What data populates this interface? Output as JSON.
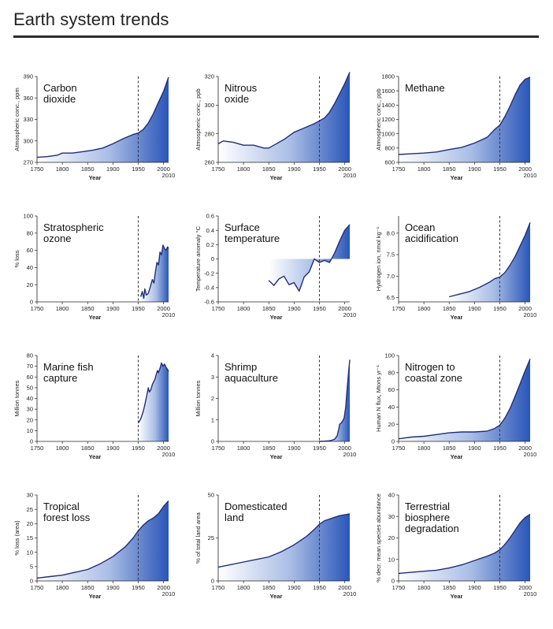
{
  "page": {
    "title": "Earth system trends"
  },
  "colors": {
    "line": "#1f2d7a",
    "fill_dark": "#2a56b8",
    "fill_light": "#ffffff",
    "marker": "#333333"
  },
  "chart_data": [
    {
      "type": "area",
      "title_lines": [
        "Carbon",
        "dioxide"
      ],
      "ylabel": "Atmospheric conc., ppm",
      "xlabel": "Year",
      "year_label": "2010",
      "xlim": [
        1750,
        2010
      ],
      "ylim": [
        270,
        390
      ],
      "xticks": [
        1750,
        1800,
        1850,
        1900,
        1950,
        2000
      ],
      "yticks": [
        270,
        300,
        330,
        360,
        390
      ],
      "marker_x": 1950,
      "x": [
        1750,
        1770,
        1790,
        1800,
        1820,
        1840,
        1860,
        1880,
        1900,
        1920,
        1940,
        1950,
        1960,
        1970,
        1980,
        1990,
        2000,
        2010
      ],
      "y": [
        277,
        278,
        280,
        283,
        283,
        285,
        287,
        290,
        296,
        303,
        309,
        311,
        316,
        325,
        338,
        354,
        369,
        389
      ]
    },
    {
      "type": "area",
      "title_lines": [
        "Nitrous",
        "oxide"
      ],
      "ylabel": "Atmospheric conc., ppb",
      "xlabel": "Year",
      "year_label": "2010",
      "xlim": [
        1750,
        2010
      ],
      "ylim": [
        260,
        320
      ],
      "xticks": [
        1750,
        1800,
        1850,
        1900,
        1950,
        2000
      ],
      "yticks": [
        260,
        280,
        300,
        320
      ],
      "marker_x": 1950,
      "x": [
        1750,
        1760,
        1780,
        1800,
        1820,
        1840,
        1850,
        1860,
        1880,
        1900,
        1920,
        1940,
        1950,
        1960,
        1970,
        1980,
        1990,
        2000,
        2010
      ],
      "y": [
        273,
        275,
        274,
        272,
        272,
        270,
        270,
        272,
        276,
        281,
        284,
        287,
        289,
        291,
        295,
        301,
        308,
        315,
        323
      ]
    },
    {
      "type": "area",
      "title_lines": [
        "Methane"
      ],
      "ylabel": "Atmospheric conc., ppb",
      "xlabel": "Year",
      "year_label": "2010",
      "xlim": [
        1750,
        2010
      ],
      "ylim": [
        600,
        1800
      ],
      "xticks": [
        1750,
        1800,
        1850,
        1900,
        1950,
        2000
      ],
      "yticks": [
        600,
        800,
        1000,
        1200,
        1400,
        1600,
        1800
      ],
      "marker_x": 1950,
      "x": [
        1750,
        1775,
        1800,
        1825,
        1850,
        1875,
        1900,
        1925,
        1940,
        1950,
        1960,
        1970,
        1980,
        1990,
        2000,
        2010
      ],
      "y": [
        710,
        720,
        730,
        745,
        780,
        810,
        870,
        950,
        1060,
        1120,
        1240,
        1380,
        1540,
        1680,
        1760,
        1790
      ]
    },
    {
      "type": "area",
      "title_lines": [
        "Stratospheric",
        "ozone"
      ],
      "ylabel": "% loss",
      "xlabel": "Year",
      "year_label": "2010",
      "xlim": [
        1750,
        2010
      ],
      "ylim": [
        0,
        100
      ],
      "xticks": [
        1750,
        1800,
        1850,
        1900,
        1950,
        2000
      ],
      "yticks": [
        0,
        20,
        40,
        60,
        80,
        100
      ],
      "marker_x": 1950,
      "x": [
        1955,
        1958,
        1961,
        1963,
        1966,
        1970,
        1974,
        1978,
        1981,
        1984,
        1987,
        1990,
        1993,
        1996,
        1999,
        2002,
        2005,
        2008,
        2010
      ],
      "y": [
        6,
        12,
        4,
        15,
        8,
        10,
        18,
        26,
        22,
        35,
        46,
        43,
        58,
        55,
        66,
        62,
        60,
        64,
        62
      ]
    },
    {
      "type": "area",
      "title_lines": [
        "Surface",
        "temperature"
      ],
      "ylabel": "Temperature anomaly °C",
      "xlabel": "Year",
      "year_label": "2010",
      "xlim": [
        1750,
        2010
      ],
      "ylim": [
        -0.6,
        0.6
      ],
      "xticks": [
        1750,
        1800,
        1850,
        1900,
        1950,
        2000
      ],
      "yticks": [
        -0.6,
        -0.4,
        -0.2,
        0,
        0.2,
        0.4,
        0.6
      ],
      "yticklabels": [
        "-0.6",
        "-0.4",
        "-0.2",
        "0",
        "0.2",
        "0.4",
        "0.6"
      ],
      "marker_x": 1950,
      "baseline": 0,
      "x": [
        1850,
        1860,
        1870,
        1880,
        1890,
        1900,
        1910,
        1920,
        1930,
        1940,
        1950,
        1960,
        1970,
        1980,
        1990,
        2000,
        2010
      ],
      "y": [
        -0.3,
        -0.37,
        -0.28,
        -0.24,
        -0.36,
        -0.33,
        -0.45,
        -0.25,
        -0.18,
        0.0,
        -0.05,
        -0.02,
        -0.05,
        0.08,
        0.25,
        0.4,
        0.48
      ]
    },
    {
      "type": "area",
      "title_lines": [
        "Ocean",
        "acidification"
      ],
      "ylabel": "Hydrogen ion, nmol kg⁻¹",
      "xlabel": "Year",
      "year_label": "2010",
      "xlim": [
        1750,
        2010
      ],
      "ylim": [
        6.4,
        8.4
      ],
      "xticks": [
        1750,
        1800,
        1850,
        1900,
        1950,
        2000
      ],
      "yticks": [
        6.5,
        7.0,
        7.5,
        8.0
      ],
      "yticklabels": [
        "6.5",
        "7.0",
        "7.5",
        "8.0"
      ],
      "marker_x": 1950,
      "x": [
        1850,
        1870,
        1890,
        1910,
        1930,
        1940,
        1950,
        1960,
        1970,
        1980,
        1990,
        2000,
        2010
      ],
      "y": [
        6.52,
        6.58,
        6.64,
        6.74,
        6.86,
        6.94,
        6.98,
        7.08,
        7.25,
        7.45,
        7.7,
        7.95,
        8.25
      ]
    },
    {
      "type": "area",
      "title_lines": [
        "Marine fish",
        "capture"
      ],
      "ylabel": "Million tonnes",
      "xlabel": "Year",
      "year_label": "2010",
      "xlim": [
        1750,
        2010
      ],
      "ylim": [
        0,
        80
      ],
      "xticks": [
        1750,
        1800,
        1850,
        1900,
        1950,
        2000
      ],
      "yticks": [
        0,
        10,
        20,
        30,
        40,
        50,
        60,
        70,
        80
      ],
      "marker_x": 1950,
      "x": [
        1950,
        1955,
        1960,
        1963,
        1967,
        1970,
        1972,
        1975,
        1978,
        1980,
        1983,
        1986,
        1988,
        1990,
        1993,
        1996,
        1999,
        2002,
        2005,
        2008,
        2010
      ],
      "y": [
        17,
        21,
        28,
        34,
        43,
        50,
        46,
        48,
        53,
        55,
        58,
        63,
        66,
        64,
        68,
        73,
        70,
        72,
        69,
        67,
        65
      ]
    },
    {
      "type": "area",
      "title_lines": [
        "Shrimp",
        "aquaculture"
      ],
      "ylabel": "Million tonnes",
      "xlabel": "Year",
      "year_label": "2010",
      "xlim": [
        1750,
        2010
      ],
      "ylim": [
        0,
        4
      ],
      "xticks": [
        1750,
        1800,
        1850,
        1900,
        1950,
        2000
      ],
      "yticks": [
        0,
        1,
        2,
        3,
        4
      ],
      "marker_x": 1950,
      "x": [
        1950,
        1960,
        1970,
        1975,
        1980,
        1985,
        1988,
        1990,
        1993,
        1996,
        1999,
        2002,
        2005,
        2008,
        2010
      ],
      "y": [
        0.0,
        0.01,
        0.03,
        0.06,
        0.1,
        0.25,
        0.55,
        0.8,
        0.85,
        0.95,
        1.1,
        1.6,
        2.5,
        3.3,
        3.8
      ]
    },
    {
      "type": "area",
      "title_lines": [
        "Nitrogen to",
        "coastal zone"
      ],
      "ylabel": "Human N flux, Mtons yr⁻¹",
      "xlabel": "Year",
      "year_label": "2010",
      "xlim": [
        1750,
        2010
      ],
      "ylim": [
        0,
        100
      ],
      "xticks": [
        1750,
        1800,
        1850,
        1900,
        1950,
        2000
      ],
      "yticks": [
        0,
        20,
        40,
        60,
        80,
        100
      ],
      "marker_x": 1950,
      "x": [
        1750,
        1775,
        1800,
        1825,
        1850,
        1875,
        1900,
        1925,
        1940,
        1950,
        1960,
        1970,
        1980,
        1990,
        2000,
        2010
      ],
      "y": [
        3,
        5,
        6,
        8,
        10,
        11,
        11,
        12,
        15,
        19,
        27,
        38,
        52,
        67,
        82,
        96
      ]
    },
    {
      "type": "area",
      "title_lines": [
        "Tropical",
        "forest loss"
      ],
      "ylabel": "% loss (area)",
      "xlabel": "Year",
      "year_label": "2010",
      "xlim": [
        1750,
        2010
      ],
      "ylim": [
        0,
        30
      ],
      "xticks": [
        1750,
        1800,
        1850,
        1900,
        1950,
        2000
      ],
      "yticks": [
        0,
        5,
        10,
        15,
        20,
        25,
        30
      ],
      "marker_x": 1950,
      "x": [
        1750,
        1775,
        1800,
        1825,
        1850,
        1875,
        1900,
        1925,
        1940,
        1950,
        1960,
        1970,
        1980,
        1990,
        2000,
        2010
      ],
      "y": [
        1,
        1.5,
        2,
        3,
        4,
        6,
        8.5,
        12,
        15,
        17.5,
        19.5,
        21,
        22,
        23.5,
        26,
        28
      ]
    },
    {
      "type": "area",
      "title_lines": [
        "Domesticated",
        "land"
      ],
      "ylabel": "% of total land area",
      "xlabel": "Year",
      "year_label": "2010",
      "xlim": [
        1750,
        2010
      ],
      "ylim": [
        0,
        50
      ],
      "xticks": [
        1750,
        1800,
        1850,
        1900,
        1950,
        2000
      ],
      "yticks": [
        0,
        25,
        50
      ],
      "marker_x": 1950,
      "x": [
        1750,
        1775,
        1800,
        1825,
        1850,
        1875,
        1900,
        1925,
        1940,
        1950,
        1960,
        1970,
        1980,
        1990,
        2000,
        2010
      ],
      "y": [
        8,
        9.5,
        11,
        12.5,
        14,
        17,
        21,
        26,
        30,
        33,
        35,
        36,
        37,
        38,
        38.5,
        39
      ]
    },
    {
      "type": "area",
      "title_lines": [
        "Terrestrial",
        "biosphere",
        "degradation"
      ],
      "ylabel": "% decr. mean species abundance",
      "xlabel": "Year",
      "year_label": "2010",
      "xlim": [
        1750,
        2010
      ],
      "ylim": [
        0,
        40
      ],
      "xticks": [
        1750,
        1800,
        1850,
        1900,
        1950,
        2000
      ],
      "yticks": [
        0,
        10,
        20,
        30,
        40
      ],
      "marker_x": 1950,
      "x": [
        1750,
        1775,
        1800,
        1825,
        1850,
        1875,
        1900,
        1925,
        1940,
        1950,
        1960,
        1970,
        1980,
        1990,
        2000,
        2010
      ],
      "y": [
        3.5,
        4,
        4.5,
        5,
        6,
        7.5,
        9.5,
        11.5,
        13,
        14.5,
        17,
        20,
        23.5,
        27,
        29.5,
        31
      ]
    }
  ]
}
